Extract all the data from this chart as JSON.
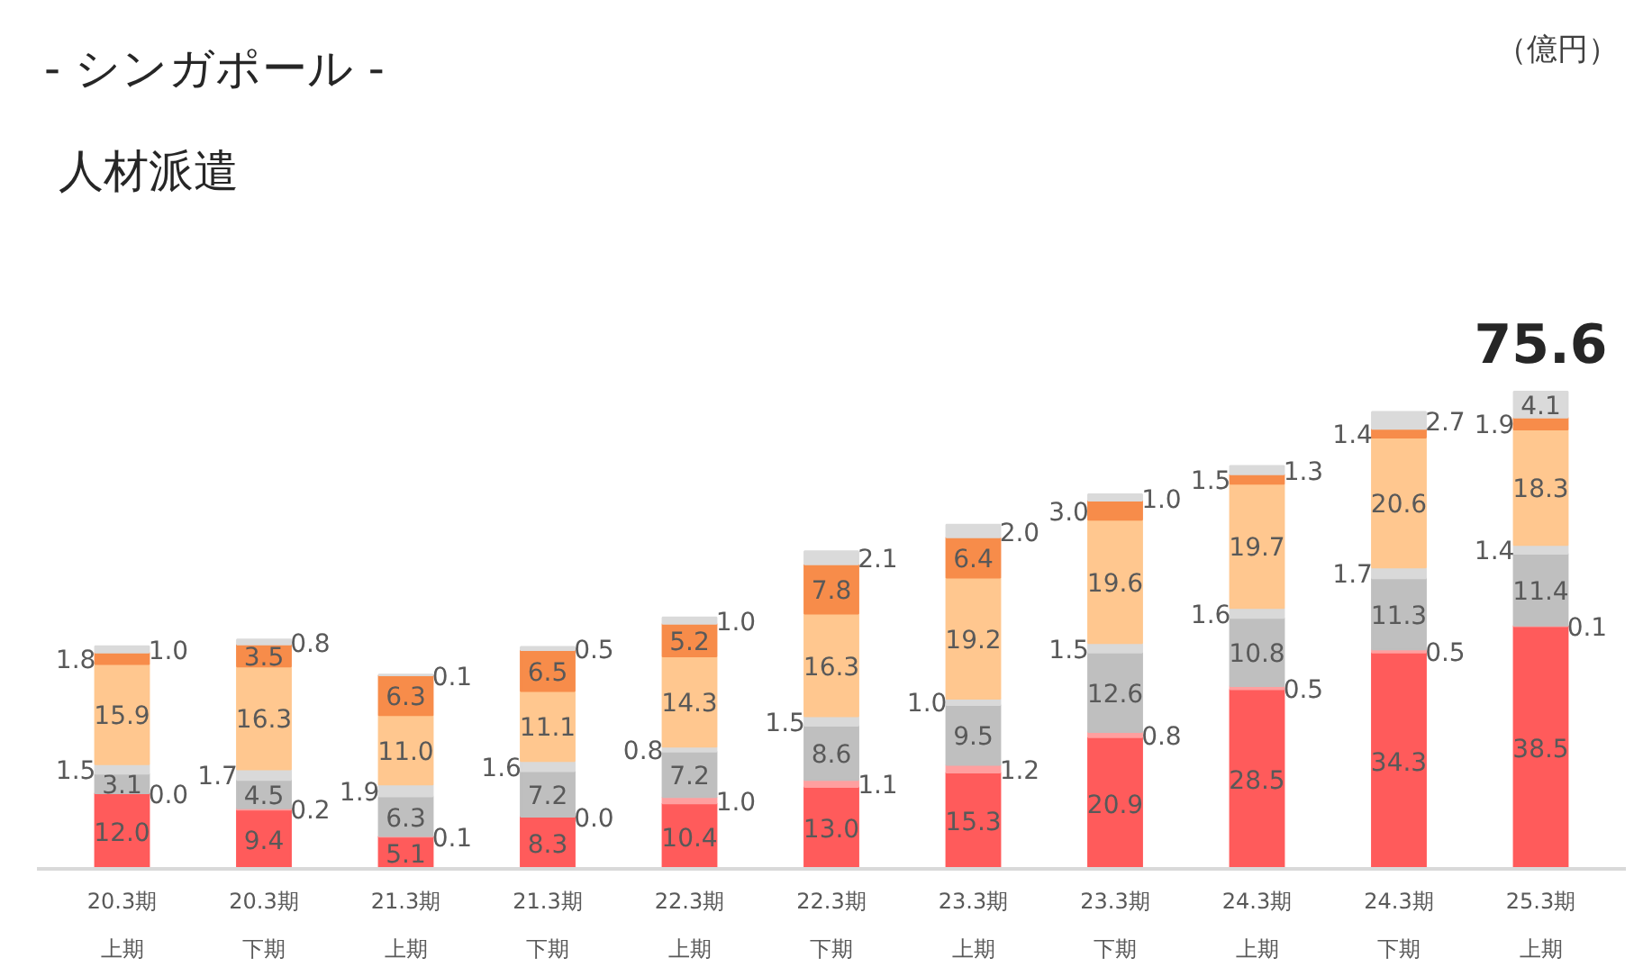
{
  "chart_data": {
    "type": "bar",
    "title": "- シンガポール -",
    "subtitle": "人材派遣",
    "annotations": [
      "（億円）"
    ],
    "categories": [
      "20.3期上期",
      "20.3期下期",
      "21.3期上期",
      "21.3期下期",
      "22.3期上期",
      "22.3期下期",
      "23.3期上期",
      "23.3期下期",
      "24.3期上期",
      "24.3期下期",
      "25.3期上期"
    ],
    "stacked": true,
    "grid": false,
    "tick_labels": "x",
    "series": [
      {
        "color": "#ff5b5b",
        "values": [
          12.0,
          9.4,
          5.1,
          8.3,
          10.4,
          13.0,
          15.3,
          20.9,
          28.5,
          34.3,
          38.5
        ],
        "value_labels": [
          "12.0",
          "9.4",
          "5.1",
          "8.3",
          "10.4",
          "13.0",
          "15.3",
          "20.9",
          "28.5",
          "34.3",
          "38.5"
        ]
      },
      {
        "color": "#ff9f9f",
        "values": [
          0.0,
          0.2,
          0.1,
          0.0,
          1.0,
          1.1,
          1.2,
          0.8,
          0.5,
          0.5,
          0.1
        ],
        "value_labels": [
          "0.0",
          "0.2",
          "0.1",
          "0.0",
          "1.0",
          "1.1",
          "1.2",
          "0.8",
          "0.5",
          "0.5",
          "0.1"
        ]
      },
      {
        "color": "#bfbfbf",
        "values": [
          3.1,
          4.5,
          6.3,
          7.2,
          7.2,
          8.6,
          9.5,
          12.6,
          10.8,
          11.3,
          11.4
        ],
        "value_labels": [
          "3.1",
          "4.5",
          "6.3",
          "7.2",
          "7.2",
          "8.6",
          "9.5",
          "12.6",
          "10.8",
          "11.3",
          "11.4"
        ]
      },
      {
        "color": "#d9d9d9",
        "values": [
          1.5,
          1.7,
          1.9,
          1.6,
          0.8,
          1.5,
          1.0,
          1.5,
          1.6,
          1.7,
          1.4
        ],
        "value_labels": [
          "1.5",
          "1.7",
          "1.9",
          "1.6",
          "0.8",
          "1.5",
          "1.0",
          "1.5",
          "1.6",
          "1.7",
          "1.4"
        ]
      },
      {
        "color": "#ffc78f",
        "values": [
          15.9,
          16.3,
          11.0,
          11.1,
          14.3,
          16.3,
          19.2,
          19.6,
          19.7,
          20.6,
          18.3
        ],
        "value_labels": [
          "15.9",
          "16.3",
          "11.0",
          "11.1",
          "14.3",
          "16.3",
          "19.2",
          "19.6",
          "19.7",
          "20.6",
          "18.3"
        ]
      },
      {
        "color": "#f78c4a",
        "values": [
          1.8,
          3.5,
          6.3,
          6.5,
          5.2,
          7.8,
          6.4,
          3.0,
          1.5,
          1.4,
          1.9
        ],
        "value_labels": [
          "1.8",
          "3.5",
          "6.3",
          "6.5",
          "5.2",
          "7.8",
          "6.4",
          "3.0",
          "1.5",
          "1.4",
          "1.9"
        ]
      },
      {
        "color": "#dadada",
        "values": [
          1.0,
          0.8,
          0.1,
          0.5,
          1.0,
          2.1,
          2.0,
          1.0,
          1.3,
          2.7,
          4.1
        ],
        "value_labels": [
          "1.0",
          "0.8",
          "0.1",
          "0.5",
          "1.0",
          "2.1",
          "2.0",
          "1.0",
          "1.3",
          "2.7",
          "4.1"
        ]
      }
    ],
    "totals": [
      null,
      null,
      null,
      null,
      null,
      null,
      null,
      null,
      null,
      null,
      "75.6"
    ]
  }
}
